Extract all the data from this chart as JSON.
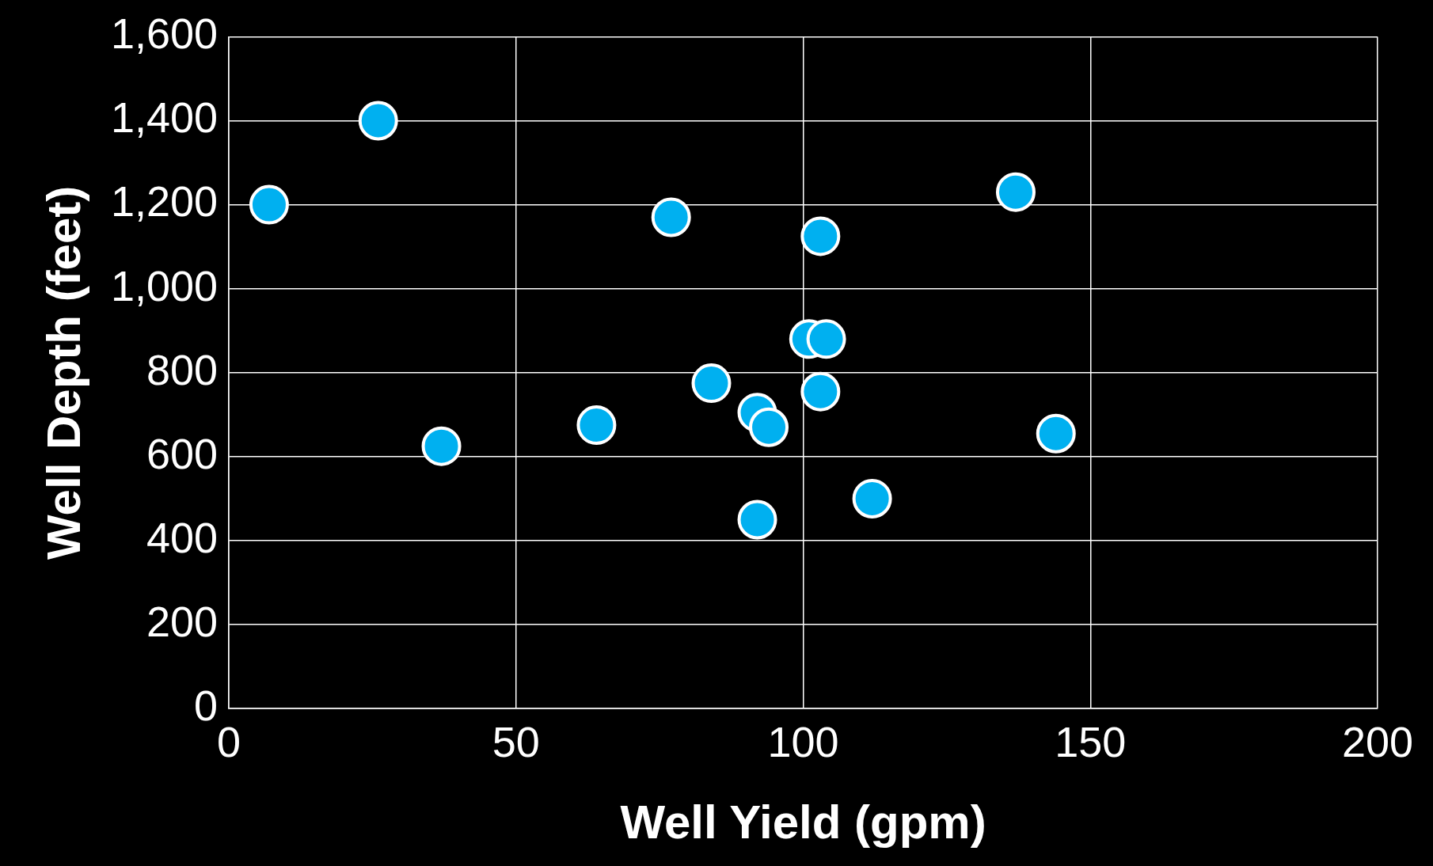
{
  "chart_data": {
    "type": "scatter",
    "xlabel": "Well Yield (gpm)",
    "ylabel": "Well Depth (feet)",
    "x": [
      7,
      26,
      37,
      64,
      77,
      84,
      92,
      94,
      92,
      101,
      104,
      103,
      103,
      112,
      137,
      144
    ],
    "series": [
      {
        "color": "#00b0f0",
        "values": [
          1200,
          1400,
          625,
          675,
          1170,
          775,
          705,
          670,
          450,
          880,
          880,
          1125,
          755,
          500,
          1230,
          655
        ]
      }
    ],
    "xlim": [
      0,
      200
    ],
    "xticks": [
      0,
      50,
      100,
      150,
      200
    ],
    "ylim": [
      0,
      1600
    ],
    "yticks": [
      0,
      200,
      400,
      600,
      800,
      {
        "value": 1000,
        "label": "1,000"
      },
      {
        "value": 1200,
        "label": "1,200"
      },
      {
        "value": 1400,
        "label": "1,400"
      },
      {
        "value": 1600,
        "label": "1,600"
      }
    ],
    "grid": true,
    "legend": false,
    "marker": "circle"
  }
}
